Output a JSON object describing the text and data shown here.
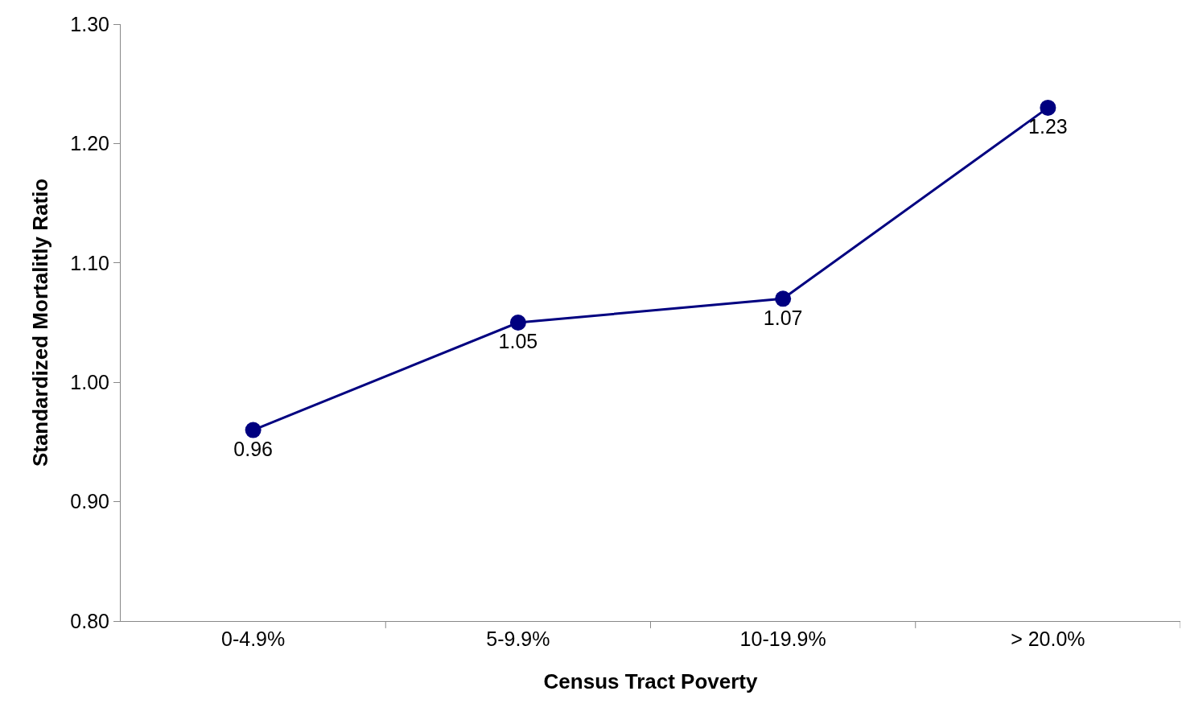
{
  "chart_data": {
    "type": "line",
    "xlabel": "Census Tract Poverty",
    "ylabel": "Standardized Mortalitly Ratio",
    "categories": [
      "0-4.9%",
      "5-9.9%",
      "10-19.9%",
      "> 20.0%"
    ],
    "series": [
      {
        "color": "#000080",
        "values": [
          0.96,
          1.05,
          1.07,
          1.23
        ]
      }
    ],
    "ylim": [
      0.8,
      1.3
    ],
    "yticks": [
      {
        "value": 0.8,
        "label": "0.80"
      },
      {
        "value": 0.9,
        "label": "0.90"
      },
      {
        "value": 1.0,
        "label": "1.00"
      },
      {
        "value": 1.1,
        "label": "1.10"
      },
      {
        "value": 1.2,
        "label": "1.20"
      },
      {
        "value": 1.3,
        "label": "1.30"
      }
    ],
    "data_labels": true,
    "marker": "circle",
    "line_style": "solid"
  }
}
